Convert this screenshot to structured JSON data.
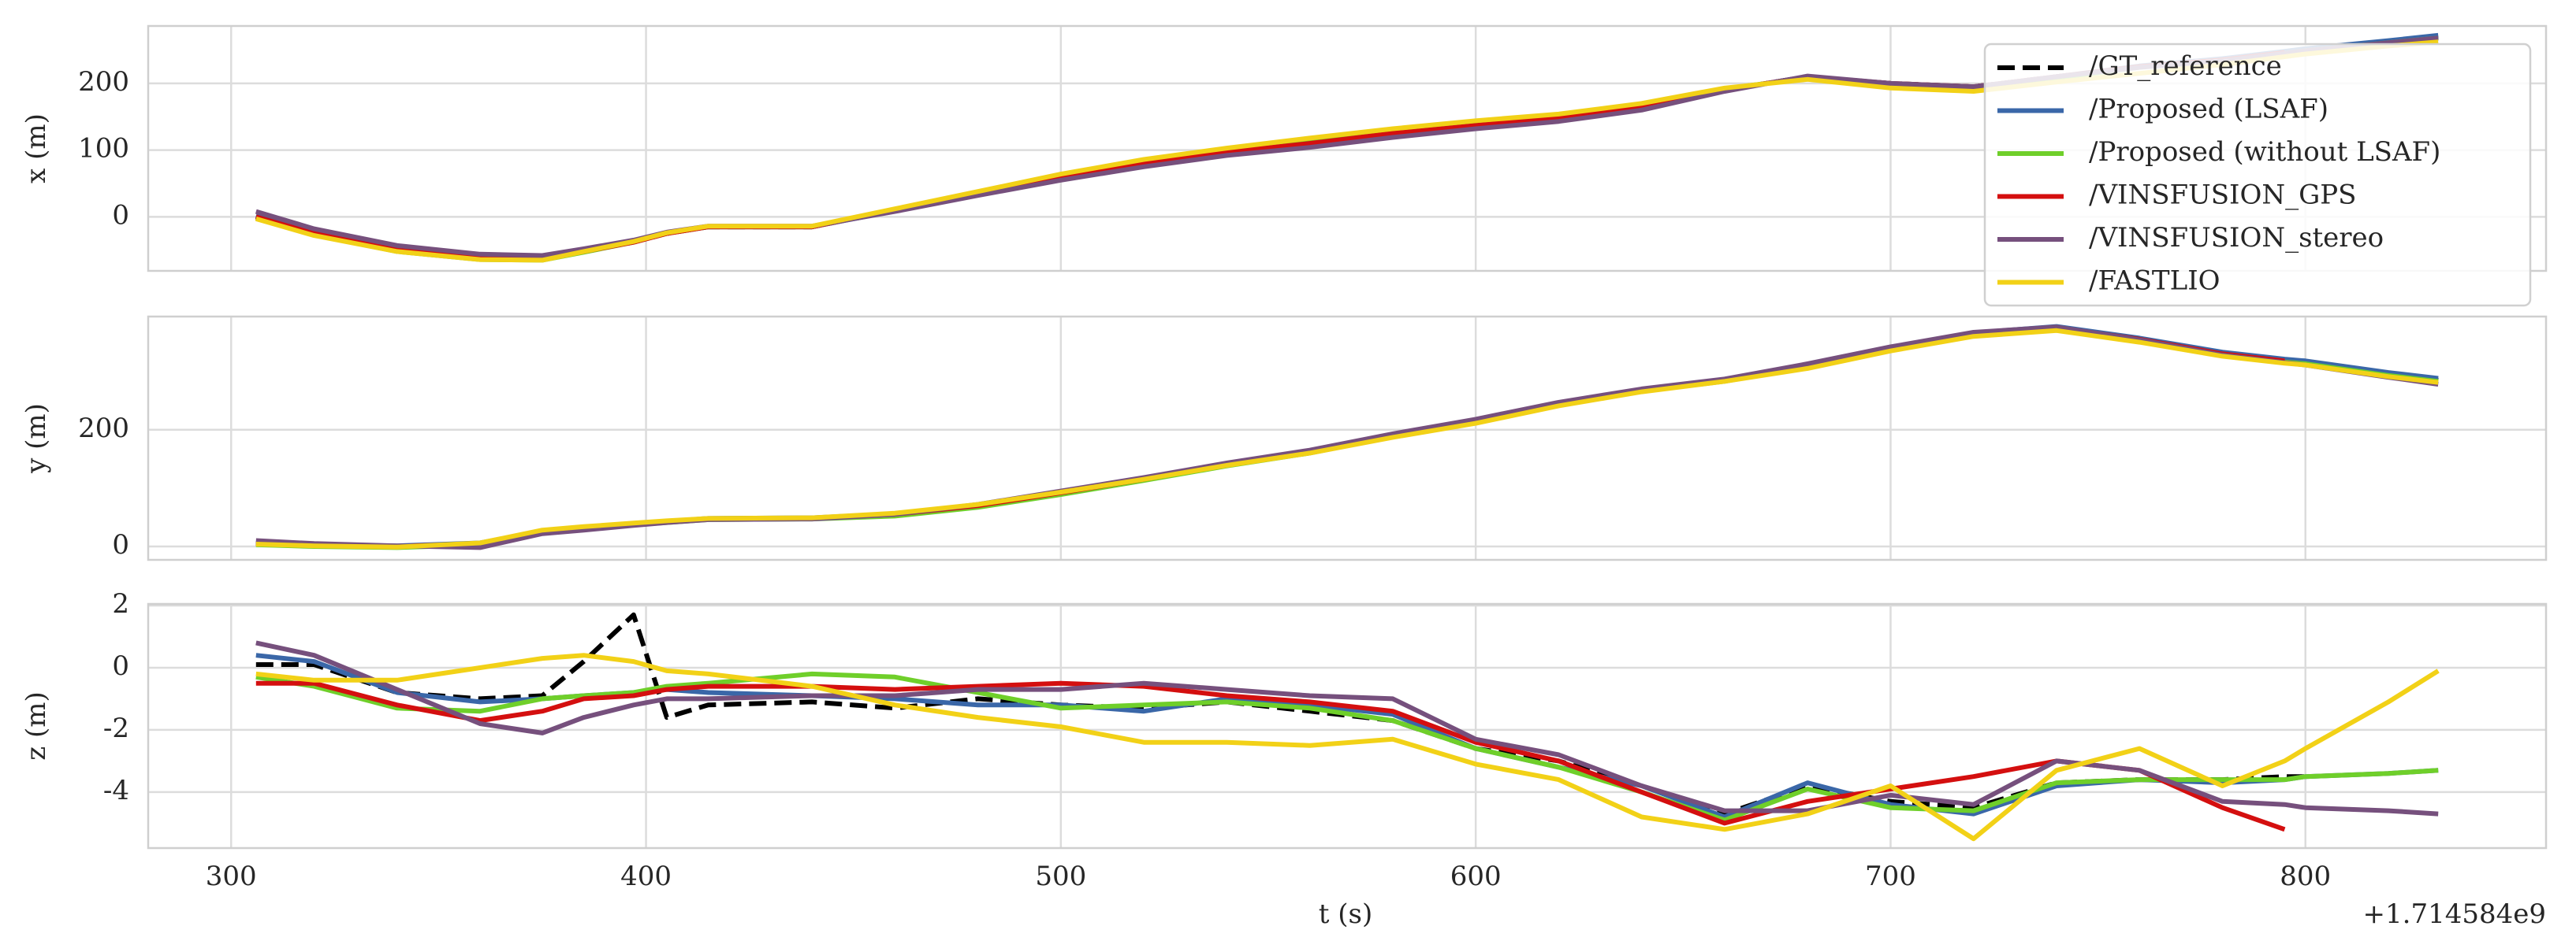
{
  "chart_data": [
    {
      "type": "line",
      "ylabel": "x (m)",
      "legend": "upper right",
      "grid": true,
      "xtick_labels": false,
      "x": [
        306,
        320,
        340,
        360,
        375,
        385,
        397,
        405,
        415,
        440,
        460,
        480,
        500,
        520,
        540,
        560,
        580,
        600,
        620,
        640,
        660,
        680,
        700,
        720,
        740,
        760,
        780,
        795,
        800,
        820,
        832
      ],
      "xlim": [
        280,
        858
      ],
      "xticks": [
        300,
        400,
        500,
        600,
        700,
        800
      ],
      "ylim": [
        -81,
        286
      ],
      "yticks": [
        0,
        100,
        200
      ],
      "series": [
        {
          "name": "/GT_reference",
          "color": "#000000",
          "linestyle": "dashed",
          "values": [
            0,
            -25,
            -50,
            -62,
            -63,
            -52,
            -38,
            -25,
            -15,
            -15,
            10,
            35,
            60,
            80,
            97,
            110,
            125,
            137,
            148,
            165,
            190,
            210,
            200,
            195,
            210,
            225,
            235,
            246,
            250,
            262,
            270
          ]
        },
        {
          "name": "/Proposed (LSAF)",
          "color": "#3a67a8",
          "values": [
            2,
            -23,
            -48,
            -60,
            -62,
            -51,
            -37,
            -24,
            -15,
            -15,
            9,
            34,
            58,
            79,
            96,
            109,
            124,
            136,
            147,
            164,
            190,
            210,
            199,
            194,
            210,
            226,
            237,
            248,
            252,
            264,
            272
          ]
        },
        {
          "name": "/Proposed (without LSAF)",
          "color": "#6fcf2a",
          "values": [
            -2,
            -27,
            -52,
            -64,
            -65,
            -53,
            -38,
            -25,
            -15,
            -15,
            11,
            36,
            61,
            82,
            100,
            113,
            128,
            140,
            151,
            168,
            192,
            208,
            197,
            192,
            208,
            224,
            234,
            245,
            249,
            261,
            268
          ]
        },
        {
          "name": "/VINSFUSION_GPS",
          "color": "#d40f0f",
          "values": [
            0,
            -25,
            -50,
            -62,
            -63,
            -52,
            -38,
            -25,
            -15,
            -15,
            10,
            35,
            60,
            80,
            97,
            110,
            125,
            137,
            148,
            165,
            190,
            210,
            200,
            195,
            210,
            225,
            235,
            246,
            null,
            null,
            null
          ]
        },
        {
          "name": "/VINSFUSION_stereo",
          "color": "#76507d",
          "values": [
            8,
            -18,
            -43,
            -56,
            -58,
            -48,
            -35,
            -23,
            -14,
            -14,
            8,
            32,
            55,
            75,
            92,
            104,
            119,
            132,
            143,
            160,
            188,
            211,
            200,
            195,
            210,
            224,
            234,
            245,
            249,
            261,
            268
          ]
        },
        {
          "name": "/FASTLIO",
          "color": "#f2d117",
          "values": [
            -3,
            -28,
            -52,
            -64,
            -65,
            -52,
            -37,
            -24,
            -14,
            -14,
            12,
            38,
            64,
            86,
            103,
            118,
            132,
            144,
            154,
            170,
            193,
            206,
            193,
            188,
            202,
            215,
            228,
            240,
            244,
            256,
            262
          ]
        }
      ]
    },
    {
      "type": "line",
      "ylabel": "y (m)",
      "grid": true,
      "xtick_labels": false,
      "x": [
        306,
        320,
        340,
        360,
        375,
        385,
        397,
        405,
        415,
        440,
        460,
        480,
        500,
        520,
        540,
        560,
        580,
        600,
        620,
        640,
        660,
        680,
        700,
        720,
        740,
        760,
        780,
        795,
        800,
        820,
        832
      ],
      "xlim": [
        280,
        858
      ],
      "xticks": [
        300,
        400,
        500,
        600,
        700,
        800
      ],
      "ylim": [
        -23,
        394
      ],
      "yticks": [
        0,
        200
      ],
      "series": [
        {
          "color": "#000000",
          "linestyle": "dashed",
          "values": [
            5,
            2,
            0,
            5,
            25,
            30,
            38,
            42,
            47,
            48,
            55,
            70,
            92,
            115,
            140,
            162,
            190,
            215,
            245,
            268,
            285,
            310,
            340,
            365,
            375,
            355,
            330,
            318,
            315,
            295,
            285
          ]
        },
        {
          "color": "#3a67a8",
          "values": [
            6,
            3,
            1,
            6,
            26,
            31,
            39,
            43,
            48,
            49,
            56,
            71,
            93,
            116,
            141,
            163,
            191,
            216,
            246,
            269,
            286,
            311,
            341,
            366,
            377,
            357,
            333,
            321,
            318,
            298,
            288
          ]
        },
        {
          "color": "#6fcf2a",
          "values": [
            3,
            0,
            -2,
            3,
            23,
            29,
            37,
            41,
            46,
            47,
            52,
            67,
            89,
            113,
            138,
            160,
            188,
            213,
            243,
            266,
            283,
            308,
            338,
            363,
            373,
            353,
            328,
            316,
            313,
            293,
            283
          ]
        },
        {
          "color": "#d40f0f",
          "values": [
            5,
            2,
            0,
            5,
            25,
            30,
            38,
            42,
            47,
            48,
            55,
            70,
            92,
            115,
            140,
            162,
            190,
            215,
            245,
            268,
            285,
            310,
            340,
            365,
            375,
            355,
            330,
            318,
            null,
            null,
            null
          ]
        },
        {
          "color": "#76507d",
          "values": [
            10,
            5,
            1,
            -2,
            22,
            28,
            36,
            41,
            46,
            47,
            55,
            72,
            95,
            118,
            143,
            165,
            193,
            218,
            247,
            270,
            287,
            313,
            342,
            367,
            376,
            354,
            328,
            315,
            311,
            290,
            278
          ]
        },
        {
          "color": "#f2d117",
          "values": [
            4,
            1,
            -1,
            6,
            28,
            34,
            40,
            44,
            48,
            49,
            57,
            72,
            93,
            115,
            139,
            160,
            187,
            211,
            241,
            265,
            283,
            305,
            335,
            360,
            370,
            350,
            326,
            314,
            311,
            291,
            281
          ]
        }
      ]
    },
    {
      "type": "line",
      "ylabel": "z (m)",
      "xlabel": "t (s)",
      "x_offset": "+1.714584e9",
      "grid": true,
      "xtick_labels": true,
      "x": [
        306,
        320,
        340,
        360,
        375,
        385,
        397,
        405,
        415,
        440,
        460,
        480,
        500,
        520,
        540,
        560,
        580,
        600,
        620,
        640,
        660,
        680,
        700,
        720,
        740,
        760,
        780,
        795,
        800,
        820,
        832
      ],
      "xlim": [
        280,
        858
      ],
      "xticks": [
        300,
        400,
        500,
        600,
        700,
        800
      ],
      "ylim": [
        -5.8,
        2.05
      ],
      "yticks": [
        -4,
        -2,
        0,
        2
      ],
      "series": [
        {
          "color": "#000000",
          "linestyle": "dashed",
          "values": [
            0.1,
            0.1,
            -0.8,
            -1.0,
            -0.9,
            0.2,
            1.7,
            -1.6,
            -1.2,
            -1.1,
            -1.3,
            -1.0,
            -1.2,
            -1.3,
            -1.1,
            -1.4,
            -1.7,
            -2.6,
            -3.0,
            -3.8,
            -4.7,
            -3.8,
            -4.3,
            -4.5,
            -3.7,
            -3.6,
            -3.6,
            -3.5,
            -3.5,
            null,
            null
          ]
        },
        {
          "color": "#3a67a8",
          "values": [
            0.4,
            0.2,
            -0.8,
            -1.1,
            -1.0,
            -0.9,
            -0.8,
            -0.7,
            -0.8,
            -0.9,
            -1.0,
            -1.2,
            -1.2,
            -1.4,
            -1.0,
            -1.2,
            -1.5,
            -2.6,
            -3.2,
            -3.8,
            -4.8,
            -3.7,
            -4.4,
            -4.7,
            -3.8,
            -3.6,
            -3.7,
            -3.6,
            -3.5,
            -3.4,
            -3.3
          ]
        },
        {
          "color": "#6fcf2a",
          "values": [
            -0.3,
            -0.6,
            -1.3,
            -1.4,
            -1.0,
            -0.9,
            -0.8,
            -0.6,
            -0.5,
            -0.2,
            -0.3,
            -0.8,
            -1.3,
            -1.2,
            -1.1,
            -1.3,
            -1.7,
            -2.6,
            -3.2,
            -4.0,
            -4.9,
            -3.9,
            -4.5,
            -4.6,
            -3.7,
            -3.6,
            -3.6,
            -3.6,
            -3.5,
            -3.4,
            -3.3
          ]
        },
        {
          "color": "#d40f0f",
          "values": [
            -0.5,
            -0.5,
            -1.2,
            -1.7,
            -1.4,
            -1.0,
            -0.9,
            -0.7,
            -0.6,
            -0.6,
            -0.7,
            -0.6,
            -0.5,
            -0.6,
            -0.9,
            -1.1,
            -1.4,
            -2.4,
            -3.0,
            -4.0,
            -5.0,
            -4.3,
            -3.9,
            -3.5,
            -3.0,
            -3.3,
            -4.5,
            -5.2,
            null,
            null,
            null
          ]
        },
        {
          "color": "#76507d",
          "values": [
            0.8,
            0.4,
            -0.7,
            -1.8,
            -2.1,
            -1.6,
            -1.2,
            -1.0,
            -1.0,
            -0.9,
            -0.9,
            -0.7,
            -0.7,
            -0.5,
            -0.7,
            -0.9,
            -1.0,
            -2.3,
            -2.8,
            -3.8,
            -4.6,
            -4.6,
            -4.1,
            -4.4,
            -3.0,
            -3.3,
            -4.3,
            -4.4,
            -4.5,
            -4.6,
            -4.7
          ]
        },
        {
          "color": "#f2d117",
          "values": [
            -0.2,
            -0.4,
            -0.4,
            0.0,
            0.3,
            0.4,
            0.2,
            -0.1,
            -0.2,
            -0.6,
            -1.2,
            -1.6,
            -1.9,
            -2.4,
            -2.4,
            -2.5,
            -2.3,
            -3.1,
            -3.6,
            -4.8,
            -5.2,
            -4.7,
            -3.8,
            -5.5,
            -3.3,
            -2.6,
            -3.8,
            -3.0,
            -2.6,
            -1.1,
            -0.1
          ]
        }
      ]
    }
  ]
}
